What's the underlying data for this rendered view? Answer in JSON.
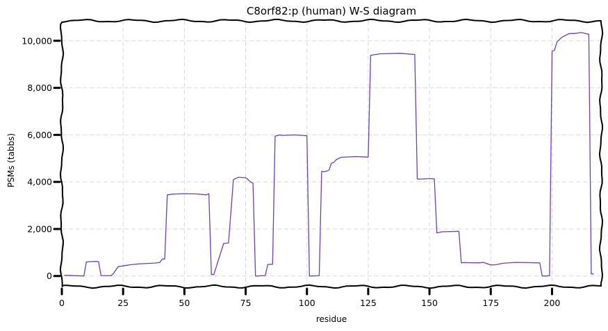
{
  "chart_data": {
    "type": "line",
    "title": "C8orf82:p (human) W-S diagram",
    "xlabel": "residue",
    "ylabel": "PSMs (tabbs)",
    "xlim": [
      0,
      220
    ],
    "ylim": [
      -450,
      10850
    ],
    "x_ticks": [
      0,
      25,
      50,
      75,
      100,
      125,
      150,
      175,
      200
    ],
    "x_tick_labels": [
      "0",
      "25",
      "50",
      "75",
      "100",
      "125",
      "150",
      "175",
      "200"
    ],
    "y_ticks": [
      0,
      2000,
      4000,
      6000,
      8000,
      10000
    ],
    "y_tick_labels": [
      "0",
      "2,000",
      "4,000",
      "6,000",
      "8,000",
      "10,000"
    ],
    "grid": true,
    "series": [
      {
        "color": "#6a3dcc",
        "x": [
          1,
          9,
          10,
          14,
          15,
          16,
          20,
          21,
          22,
          23,
          25,
          28,
          32,
          38,
          40,
          41,
          42,
          43,
          45,
          50,
          55,
          59,
          60,
          61,
          62,
          66,
          67,
          68,
          70,
          72,
          75,
          76,
          77,
          78,
          79,
          80,
          81,
          83,
          84,
          86,
          87,
          88,
          89,
          90,
          95,
          98,
          100,
          101,
          102,
          104,
          105,
          106,
          107,
          108,
          109,
          110,
          111,
          112,
          114,
          120,
          124,
          125,
          126,
          127,
          130,
          138,
          144,
          145,
          146,
          150,
          152,
          153,
          154,
          155,
          162,
          163,
          164,
          170,
          172,
          175,
          177,
          180,
          185,
          190,
          195,
          196,
          198,
          199,
          200,
          201,
          202,
          204,
          205,
          207,
          209,
          212,
          214,
          215,
          216,
          217
        ],
        "y": [
          30,
          0,
          600,
          620,
          610,
          20,
          10,
          100,
          250,
          400,
          430,
          480,
          520,
          550,
          580,
          720,
          720,
          3450,
          3480,
          3500,
          3490,
          3450,
          3500,
          60,
          60,
          1380,
          1390,
          1410,
          4100,
          4200,
          4180,
          4100,
          4000,
          3950,
          0,
          0,
          10,
          20,
          490,
          500,
          5950,
          5970,
          6000,
          5980,
          6000,
          5980,
          5960,
          0,
          0,
          10,
          20,
          4450,
          4430,
          4460,
          4500,
          4800,
          4830,
          4950,
          5050,
          5080,
          5060,
          5050,
          9380,
          9400,
          9450,
          9470,
          9420,
          4130,
          4120,
          4140,
          4130,
          1830,
          1850,
          1880,
          1900,
          560,
          570,
          560,
          580,
          470,
          480,
          540,
          580,
          570,
          560,
          0,
          0,
          20,
          9550,
          9600,
          9950,
          10150,
          10200,
          10310,
          10310,
          10350,
          10300,
          10280,
          90,
          90
        ]
      }
    ]
  }
}
